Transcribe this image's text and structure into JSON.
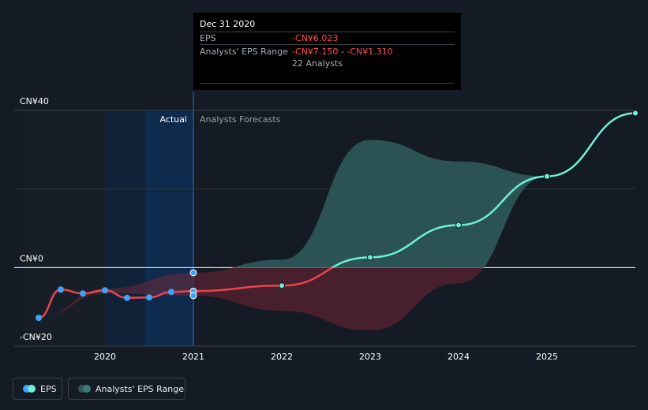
{
  "tooltip": {
    "date": "Dec 31 2020",
    "eps_label": "EPS",
    "eps_value": "-CN¥6.023",
    "range_label": "Analysts' EPS Range",
    "range_low": "-CN¥7.150",
    "range_sep": "-",
    "range_high": "-CN¥1.310",
    "analysts": "22 Analysts"
  },
  "regions": {
    "actual": "Actual",
    "forecast": "Analysts Forecasts"
  },
  "legend": {
    "eps": "EPS",
    "range": "Analysts' EPS Range"
  },
  "colors": {
    "background": "#151b24",
    "eps_line": "#e8444e",
    "forecast_line": "#6ff0d6",
    "actual_point": "#3fa4f5",
    "range_dark": "#2f5a5a",
    "range_neg": "#5a2330"
  },
  "chart_data": {
    "type": "line",
    "title": "",
    "xlabel": "",
    "ylabel": "",
    "ylim": [
      -20,
      40
    ],
    "xlim": [
      2019.1,
      2026.0
    ],
    "y_ticks": [
      {
        "value": 40,
        "label": "CN¥40"
      },
      {
        "value": 0,
        "label": "CN¥0"
      },
      {
        "value": -20,
        "label": "-CN¥20"
      }
    ],
    "x_ticks": [
      {
        "value": 2020,
        "label": "2020"
      },
      {
        "value": 2021,
        "label": "2021"
      },
      {
        "value": 2022,
        "label": "2022"
      },
      {
        "value": 2023,
        "label": "2023"
      },
      {
        "value": 2024,
        "label": "2024"
      },
      {
        "value": 2025,
        "label": "2025"
      }
    ],
    "actual_boundary": 2021.0,
    "series": [
      {
        "name": "EPS",
        "kind": "actual",
        "x": [
          2019.25,
          2019.5,
          2019.75,
          2020.0,
          2020.25,
          2020.5,
          2020.75,
          2021.0
        ],
        "y": [
          -12.8,
          -5.6,
          -6.6,
          -5.8,
          -7.7,
          -7.6,
          -6.2,
          -6.0
        ]
      },
      {
        "name": "EPS Forecast",
        "kind": "forecast",
        "x": [
          2021.0,
          2022.0,
          2023.0,
          2024.0,
          2025.0,
          2026.0
        ],
        "y": [
          -6.0,
          -4.6,
          2.6,
          10.8,
          23.2,
          39.3
        ]
      }
    ],
    "range_band": {
      "name": "Analysts' EPS Range",
      "x": [
        2021.0,
        2022.0,
        2023.0,
        2024.0,
        2025.0,
        2026.0
      ],
      "high": [
        -1.3,
        2.0,
        32.5,
        27.0,
        23.2,
        39.3
      ],
      "low": [
        -7.15,
        -11.0,
        -16.0,
        -4.0,
        23.2,
        39.3
      ]
    },
    "tooltip_points": {
      "x": 2021.0,
      "values": [
        -1.31,
        -6.023,
        -7.15
      ]
    }
  }
}
